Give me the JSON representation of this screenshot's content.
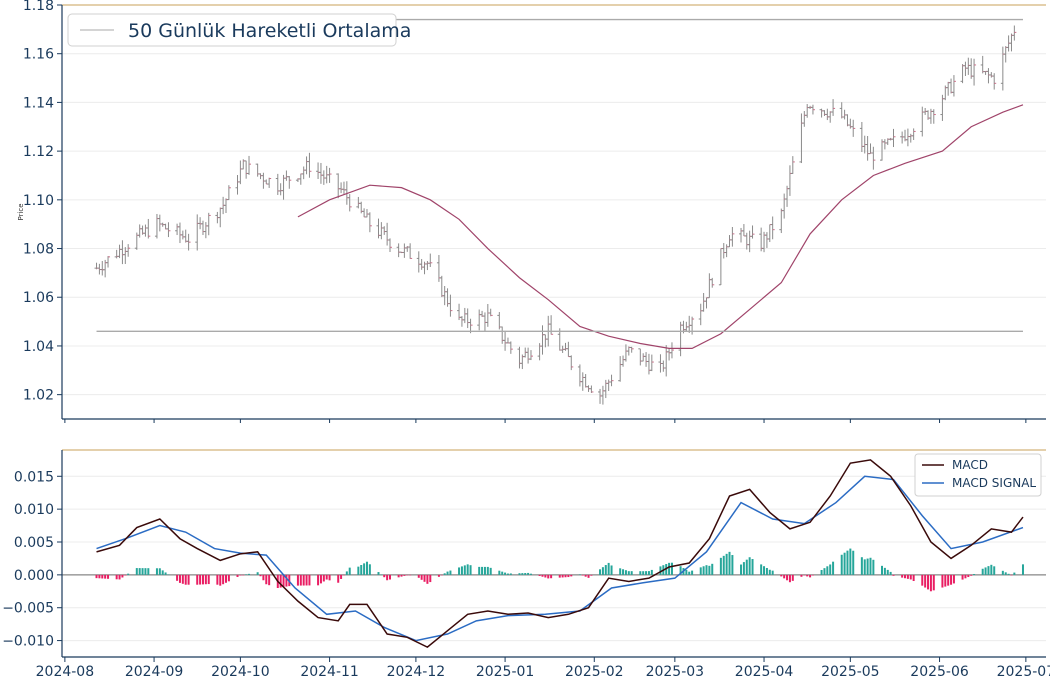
{
  "chart_data": [
    {
      "type": "candlestick",
      "ylabel": "Price",
      "ylim": [
        1.01,
        1.18
      ],
      "yticks": [
        "1.02",
        "1.04",
        "1.06",
        "1.08",
        "1.10",
        "1.12",
        "1.14",
        "1.16",
        "1.18"
      ],
      "ytick_values": [
        1.02,
        1.04,
        1.06,
        1.08,
        1.1,
        1.12,
        1.14,
        1.16,
        1.18
      ],
      "xlim": [
        "2024-07-31",
        "2025-07-08"
      ],
      "legend": {
        "position": "top-left",
        "entries": [
          {
            "label": "50 Günlük Hareketli Ortalama",
            "color": "#aaaaaa"
          }
        ]
      },
      "horizontal_lines": [
        1.174,
        1.046
      ],
      "ma_color": "#a0446a",
      "candle_color": "#8a8a8a",
      "close_color": "#c87088",
      "x": [
        "2024-08-12",
        "2024-08-23",
        "2024-09-02",
        "2024-09-13",
        "2024-09-25",
        "2024-10-02",
        "2024-10-14",
        "2024-10-25",
        "2024-11-05",
        "2024-11-15",
        "2024-11-25",
        "2024-12-05",
        "2024-12-16",
        "2024-12-26",
        "2025-01-06",
        "2025-01-16",
        "2025-01-27",
        "2025-02-03",
        "2025-02-13",
        "2025-02-24",
        "2025-03-03",
        "2025-03-10",
        "2025-03-20",
        "2025-03-31",
        "2025-04-07",
        "2025-04-16",
        "2025-04-28",
        "2025-05-08",
        "2025-05-19",
        "2025-05-30",
        "2025-06-10",
        "2025-06-20",
        "2025-06-27"
      ],
      "close": [
        1.072,
        1.082,
        1.09,
        1.084,
        1.098,
        1.114,
        1.106,
        1.114,
        1.104,
        1.09,
        1.08,
        1.074,
        1.05,
        1.052,
        1.034,
        1.046,
        1.028,
        1.02,
        1.038,
        1.03,
        1.048,
        1.056,
        1.086,
        1.082,
        1.094,
        1.14,
        1.134,
        1.118,
        1.126,
        1.138,
        1.154,
        1.15,
        1.17
      ],
      "ma50": {
        "x": [
          "2024-10-21",
          "2024-11-01",
          "2024-11-15",
          "2024-11-26",
          "2024-12-06",
          "2024-12-16",
          "2024-12-26",
          "2025-01-06",
          "2025-01-16",
          "2025-01-27",
          "2025-02-06",
          "2025-02-17",
          "2025-02-27",
          "2025-03-07",
          "2025-03-17",
          "2025-03-27",
          "2025-04-07",
          "2025-04-17",
          "2025-04-28",
          "2025-05-09",
          "2025-05-20",
          "2025-06-02",
          "2025-06-12",
          "2025-06-23",
          "2025-06-30"
        ],
        "y": [
          1.093,
          1.1,
          1.106,
          1.105,
          1.1,
          1.092,
          1.08,
          1.068,
          1.059,
          1.048,
          1.044,
          1.041,
          1.039,
          1.039,
          1.045,
          1.055,
          1.066,
          1.086,
          1.1,
          1.11,
          1.115,
          1.12,
          1.13,
          1.136,
          1.139
        ]
      }
    },
    {
      "type": "line+bar",
      "ylim": [
        -0.0125,
        0.019
      ],
      "yticks": [
        "−0.010",
        "−0.005",
        "0.000",
        "0.005",
        "0.010",
        "0.015"
      ],
      "ytick_values": [
        -0.01,
        -0.005,
        0.0,
        0.005,
        0.01,
        0.015
      ],
      "xlim": [
        "2024-07-31",
        "2025-07-08"
      ],
      "xticks": [
        "2024-08",
        "2024-09",
        "2024-10",
        "2024-11",
        "2024-12",
        "2025-01",
        "2025-02",
        "2025-03",
        "2025-04",
        "2025-05",
        "2025-06",
        "2025-07"
      ],
      "xtick_values": [
        "2024-08-01",
        "2024-09-01",
        "2024-10-01",
        "2024-11-01",
        "2024-12-01",
        "2025-01-01",
        "2025-02-01",
        "2025-03-01",
        "2025-04-01",
        "2025-05-01",
        "2025-06-01",
        "2025-07-01"
      ],
      "legend": {
        "position": "top-right",
        "entries": [
          {
            "label": "MACD",
            "color": "#3a0a0a"
          },
          {
            "label": "MACD SIGNAL",
            "color": "#2b6cc4"
          }
        ]
      },
      "histogram_colors": {
        "positive": "#26a69a",
        "negative": "#e91e63"
      },
      "series": [
        {
          "name": "MACD",
          "color": "#3a0a0a",
          "x": [
            "2024-08-12",
            "2024-08-20",
            "2024-08-26",
            "2024-09-03",
            "2024-09-10",
            "2024-09-16",
            "2024-09-24",
            "2024-10-01",
            "2024-10-07",
            "2024-10-14",
            "2024-10-21",
            "2024-10-28",
            "2024-11-04",
            "2024-11-08",
            "2024-11-14",
            "2024-11-21",
            "2024-11-28",
            "2024-12-05",
            "2024-12-12",
            "2024-12-19",
            "2024-12-26",
            "2025-01-02",
            "2025-01-09",
            "2025-01-16",
            "2025-01-23",
            "2025-01-30",
            "2025-02-06",
            "2025-02-13",
            "2025-02-20",
            "2025-02-27",
            "2025-03-06",
            "2025-03-13",
            "2025-03-20",
            "2025-03-27",
            "2025-04-03",
            "2025-04-10",
            "2025-04-17",
            "2025-04-24",
            "2025-05-01",
            "2025-05-08",
            "2025-05-15",
            "2025-05-22",
            "2025-05-29",
            "2025-06-05",
            "2025-06-12",
            "2025-06-19",
            "2025-06-26",
            "2025-06-30"
          ],
          "y": [
            0.0035,
            0.0045,
            0.0072,
            0.0085,
            0.0055,
            0.004,
            0.0022,
            0.0032,
            0.0035,
            -0.001,
            -0.004,
            -0.0065,
            -0.007,
            -0.0045,
            -0.0045,
            -0.009,
            -0.0095,
            -0.011,
            -0.0085,
            -0.006,
            -0.0055,
            -0.006,
            -0.0058,
            -0.0065,
            -0.006,
            -0.005,
            -0.0005,
            -0.001,
            -0.0005,
            0.0012,
            0.0018,
            0.0055,
            0.012,
            0.013,
            0.0095,
            0.007,
            0.008,
            0.012,
            0.017,
            0.0175,
            0.015,
            0.0105,
            0.005,
            0.0025,
            0.0045,
            0.007,
            0.0065,
            0.0088
          ]
        },
        {
          "name": "MACD SIGNAL",
          "color": "#2b6cc4",
          "x": [
            "2024-08-12",
            "2024-08-22",
            "2024-09-03",
            "2024-09-12",
            "2024-09-22",
            "2024-10-01",
            "2024-10-10",
            "2024-10-20",
            "2024-10-31",
            "2024-11-10",
            "2024-11-20",
            "2024-12-01",
            "2024-12-12",
            "2024-12-22",
            "2025-01-02",
            "2025-01-15",
            "2025-01-27",
            "2025-02-07",
            "2025-02-18",
            "2025-03-01",
            "2025-03-12",
            "2025-03-24",
            "2025-04-04",
            "2025-04-15",
            "2025-04-26",
            "2025-05-06",
            "2025-05-16",
            "2025-05-26",
            "2025-06-05",
            "2025-06-16",
            "2025-06-30"
          ],
          "y": [
            0.004,
            0.0055,
            0.0075,
            0.0065,
            0.004,
            0.0033,
            0.003,
            -0.002,
            -0.006,
            -0.0055,
            -0.008,
            -0.01,
            -0.009,
            -0.007,
            -0.0062,
            -0.006,
            -0.0055,
            -0.002,
            -0.0012,
            -0.0005,
            0.0035,
            0.011,
            0.0085,
            0.0078,
            0.011,
            0.015,
            0.0145,
            0.009,
            0.004,
            0.005,
            0.0072
          ]
        }
      ]
    }
  ]
}
